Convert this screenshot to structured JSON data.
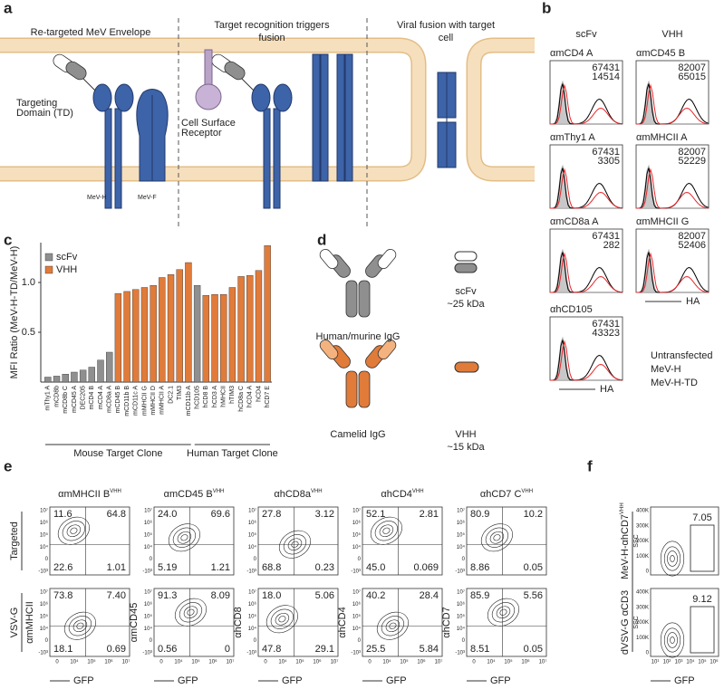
{
  "panel_labels": [
    "a",
    "b",
    "c",
    "d",
    "e",
    "f"
  ],
  "panel_a": {
    "titles": [
      [
        "Re-targeted MeV Envelope"
      ],
      [
        "Target recognition triggers",
        "fusion"
      ],
      [
        "Viral fusion with target",
        "cell"
      ]
    ],
    "targeting_domain": [
      "Targeting",
      "Domain (TD)"
    ],
    "receptor": [
      "Cell Surface",
      "Receptor"
    ],
    "mev_h": "MeV-H",
    "mev_f": "MeV-F"
  },
  "panel_b": {
    "columns": [
      {
        "header": "scFv",
        "plots": [
          {
            "title": "αmCD4 A",
            "mev_h": 67431,
            "mev_h_td": 14514
          },
          {
            "title": "αmThy1 A",
            "mev_h": 67431,
            "mev_h_td": 3305
          },
          {
            "title": "αmCD8a A",
            "mev_h": 67431,
            "mev_h_td": 282
          },
          {
            "title": "αhCD105",
            "mev_h": 67431,
            "mev_h_td": 43323
          }
        ]
      },
      {
        "header": "VHH",
        "plots": [
          {
            "title": "αmCD45 B",
            "mev_h": 82007,
            "mev_h_td": 65015
          },
          {
            "title": "αmMHCII A",
            "mev_h": 82007,
            "mev_h_td": 52229
          },
          {
            "title": "αmMHCII G",
            "mev_h": 82007,
            "mev_h_td": 52406
          }
        ]
      }
    ],
    "axis_label": "HA",
    "legend": [
      {
        "name": "Untransfected",
        "color": "#a6a6a6"
      },
      {
        "name": "MeV-H",
        "color": "#000000"
      },
      {
        "name": "MeV-H-TD",
        "color": "#e8262b"
      }
    ]
  },
  "chart_data": {
    "type": "bar",
    "y_label": "MFI Ratio (MeV-H-TD/MeV-H)",
    "categories": [
      "mThy1 A",
      "mCD8b",
      "mCD8b C",
      "mCD45 A",
      "DEC205",
      "mCD4 B",
      "mCD4 A",
      "mCD8a A",
      "mCD45 B",
      "mCD11b B",
      "mCD11c A",
      "mMHCII G",
      "mMHCII D",
      "mMHCII A",
      "DC2.1",
      "TIM3",
      "mCD11b A",
      "hCD105",
      "hCD8 B",
      "hCD3 A",
      "hMHCII",
      "hTIM3",
      "hCD8a C",
      "hCD4 A",
      "hCD4",
      "hCD7 E"
    ],
    "series": [
      {
        "name": "scFv",
        "color": "#8f8f8f",
        "values": [
          0.05,
          0.06,
          0.08,
          0.1,
          0.12,
          0.15,
          0.22,
          0.3,
          null,
          null,
          null,
          null,
          null,
          null,
          null,
          null,
          null,
          0.97,
          null,
          null,
          null,
          null,
          null,
          null,
          null,
          null
        ]
      },
      {
        "name": "VHH",
        "color": "#e07b3a",
        "values": [
          null,
          null,
          null,
          null,
          null,
          null,
          null,
          null,
          0.89,
          0.91,
          0.93,
          0.95,
          0.97,
          1.05,
          1.08,
          1.13,
          1.2,
          null,
          0.87,
          0.88,
          0.88,
          0.95,
          1.06,
          1.07,
          1.12,
          1.37
        ]
      }
    ],
    "ylim": [
      0,
      1.4
    ],
    "yticks": [
      0.5,
      {
        "value": 1,
        "label": "1.0"
      }
    ],
    "groups": [
      {
        "label": "Mouse Target Clone",
        "count": 17
      },
      {
        "label": "Human Target Clone",
        "count": 9
      }
    ]
  },
  "panel_d": {
    "human_igg": "Human/murine IgG",
    "camelid_igg": "Camelid IgG",
    "scfv": [
      "scFv",
      "~25 kDa"
    ],
    "vhh": [
      "VHH",
      "~15 kDa"
    ]
  },
  "panel_e": {
    "row_labels": [
      "Targeted",
      "VSV-G"
    ],
    "x_label": "GFP",
    "xticks": [
      "0",
      "10⁴",
      "10⁵",
      "10⁶",
      "10⁷"
    ],
    "yticks": [
      "10⁷",
      "10⁶",
      "10⁵",
      "10⁴",
      "0",
      "-10³"
    ],
    "plots": [
      {
        "title": "αmMHCII B",
        "title_sup": "VHH",
        "y_label": "αmMHCII",
        "targeted": [
          "11.6",
          "64.8",
          "22.6",
          "1.01"
        ],
        "vsvg": [
          "73.8",
          "7.40",
          "18.1",
          "0.69"
        ]
      },
      {
        "title": "αmCD45 B",
        "title_sup": "VHH",
        "y_label": "αmCD45",
        "targeted": [
          "24.0",
          "69.6",
          "5.19",
          "1.21"
        ],
        "vsvg": [
          "91.3",
          "8.09",
          "0.56",
          "0"
        ]
      },
      {
        "title": "αhCD8a",
        "title_sup": "VHH",
        "y_label": "αhCD8",
        "targeted": [
          "27.8",
          "3.12",
          "68.8",
          "0.23"
        ],
        "vsvg": [
          "18.0",
          "5.06",
          "47.8",
          "29.1"
        ]
      },
      {
        "title": "αhCD4",
        "title_sup": "VHH",
        "y_label": "αhCD4",
        "targeted": [
          "52.1",
          "2.81",
          "45.0",
          "0.069"
        ],
        "vsvg": [
          "40.2",
          "28.4",
          "25.5",
          "5.84"
        ]
      },
      {
        "title": "αhCD7 C",
        "title_sup": "VHH",
        "y_label": "αhCD7",
        "targeted": [
          "80.9",
          "10.2",
          "8.86",
          "0.05"
        ],
        "vsvg": [
          "85.9",
          "5.56",
          "8.51",
          "0.05"
        ]
      }
    ]
  },
  "panel_f": {
    "x_label": "GFP",
    "y_label": "SSC",
    "yticks": [
      "400K",
      "300K",
      "200K",
      "100K",
      "0"
    ],
    "xticks": [
      "10¹",
      "10²",
      "10³",
      "10⁴",
      "10⁵",
      "10⁶"
    ],
    "plots": [
      {
        "label": "MeV-H-αhCD7",
        "label_sup": "VHH",
        "gate": "7.05"
      },
      {
        "label": "dVSV-G αCD3",
        "label_sup": "",
        "gate": "9.12"
      }
    ]
  }
}
